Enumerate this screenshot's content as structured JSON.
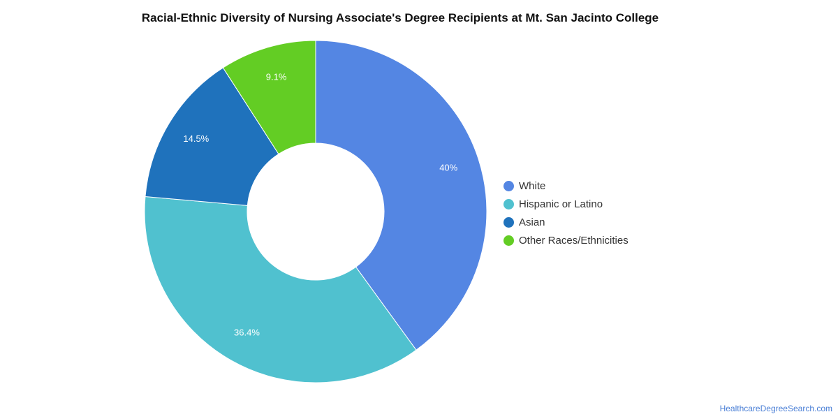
{
  "chart_data": {
    "type": "pie",
    "variant": "donut",
    "title": "Racial-Ethnic Diversity of Nursing Associate's Degree Recipients at Mt. San Jacinto College",
    "categories": [
      "White",
      "Hispanic or Latino",
      "Asian",
      "Other Races/Ethnicities"
    ],
    "values": [
      40,
      36.4,
      14.5,
      9.1
    ],
    "labels": [
      "40%",
      "36.4%",
      "14.5%",
      "9.1%"
    ],
    "colors": [
      "#5486e3",
      "#50c1cf",
      "#1f72bc",
      "#63cd24"
    ],
    "legend_position": "right"
  },
  "footer": {
    "credit": "HealthcareDegreeSearch.com"
  }
}
